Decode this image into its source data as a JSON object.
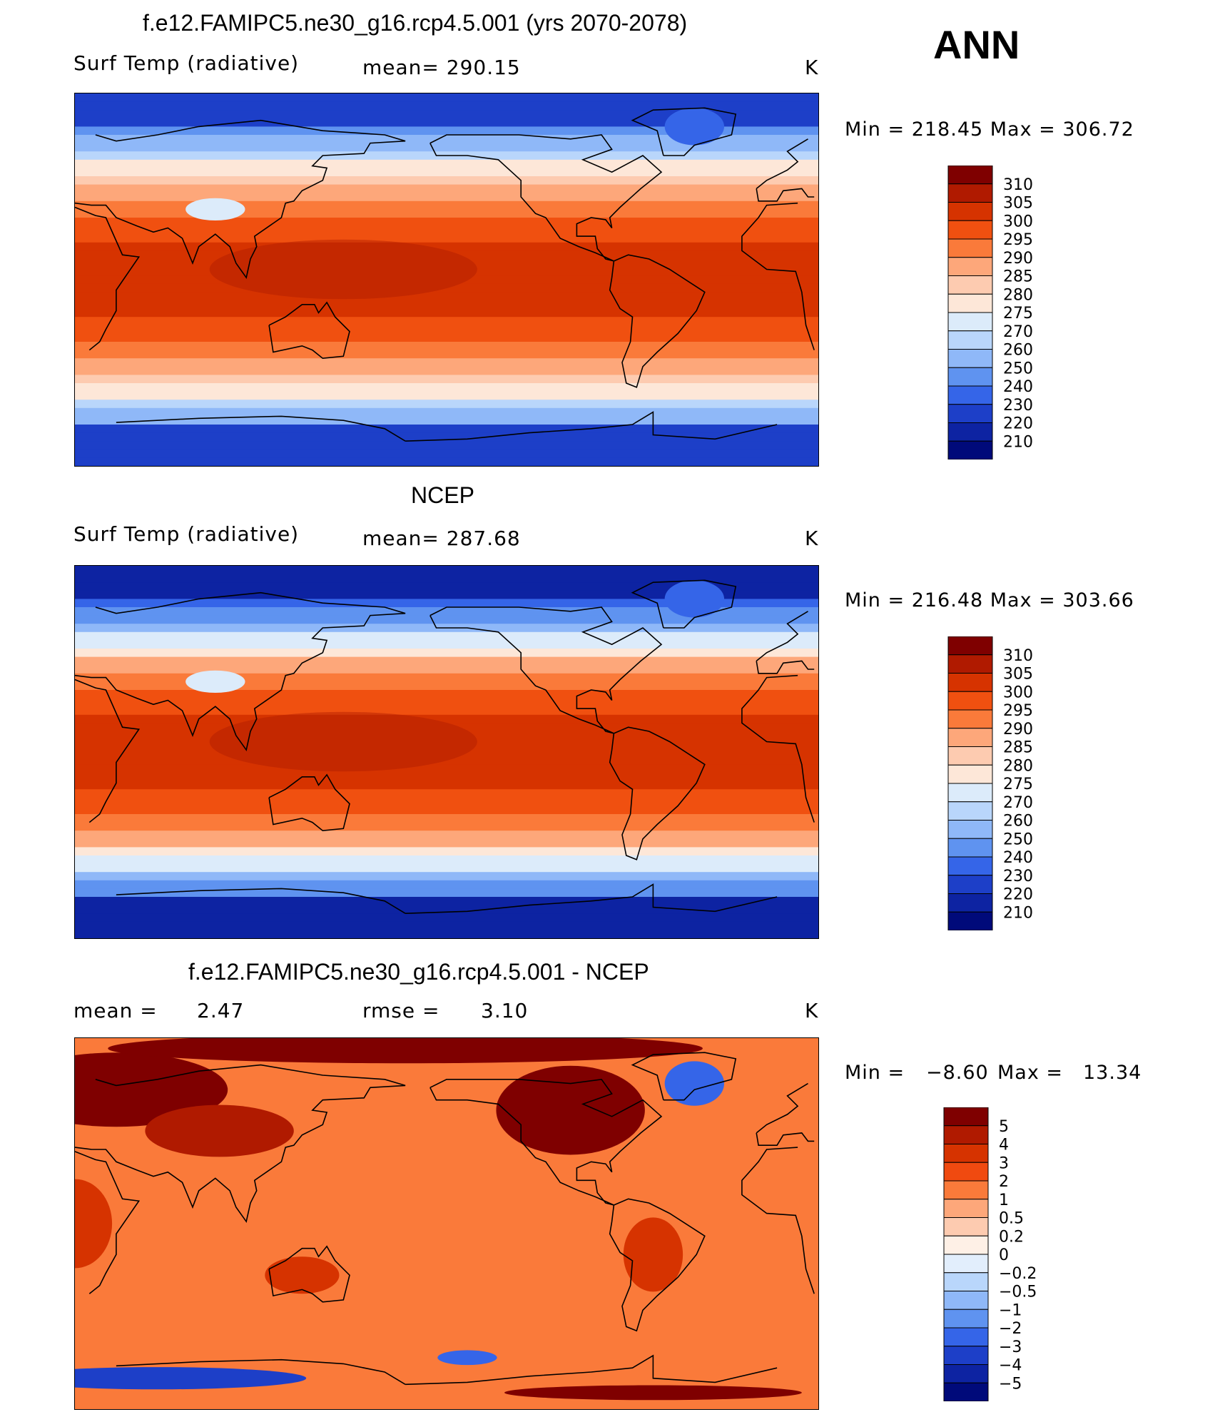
{
  "season": "ANN",
  "panels": [
    {
      "title": "f.e12.FAMIPC5.ne30_g16.rcp4.5.001 (yrs 2070-2078)",
      "left_label": "Surf Temp (radiative)",
      "center_label": "mean= 290.15",
      "units": "K",
      "min_max": "Min = 218.45 Max = 306.72"
    },
    {
      "title": "NCEP",
      "left_label": "Surf Temp (radiative)",
      "center_label": "mean= 287.68",
      "units": "K",
      "min_max": "Min = 216.48 Max = 303.66"
    },
    {
      "title": "f.e12.FAMIPC5.ne30_g16.rcp4.5.001 - NCEP",
      "left_label": "mean =",
      "left_value": "2.47",
      "center_label": "rmse =",
      "center_value": "3.10",
      "units": "K",
      "min_max_label": "Min =",
      "min_value": "−8.60",
      "max_label": "Max =",
      "max_value": "13.34"
    }
  ],
  "chart_data": [
    {
      "type": "heatmap",
      "variable": "Surf Temp (radiative)",
      "mean": 290.15,
      "min": 218.45,
      "max": 306.72,
      "colorbar_levels": [
        "310",
        "305",
        "300",
        "295",
        "290",
        "285",
        "280",
        "275",
        "270",
        "260",
        "250",
        "240",
        "230",
        "220",
        "210"
      ]
    },
    {
      "type": "heatmap",
      "variable": "Surf Temp (radiative)",
      "mean": 287.68,
      "min": 216.48,
      "max": 303.66,
      "colorbar_levels": [
        "310",
        "305",
        "300",
        "295",
        "290",
        "285",
        "280",
        "275",
        "270",
        "260",
        "250",
        "240",
        "230",
        "220",
        "210"
      ]
    },
    {
      "type": "heatmap",
      "mean": 2.47,
      "rmse": 3.1,
      "min": -8.6,
      "max": 13.34,
      "colorbar_levels": [
        "5",
        "4",
        "3",
        "2",
        "1",
        "0.5",
        "0.2",
        "0",
        "−0.2",
        "−0.5",
        "−1",
        "−2",
        "−3",
        "−4",
        "−5"
      ]
    }
  ],
  "colors": {
    "temp_scale": [
      "#7f0000",
      "#b01a00",
      "#d63300",
      "#f05010",
      "#fa7a3a",
      "#fda77a",
      "#fdcbb0",
      "#fde7d8",
      "#dcebfa",
      "#b9d6fb",
      "#8fb8f8",
      "#5f93f0",
      "#3565e8",
      "#1d3fc8",
      "#0d23a2",
      "#000a7a"
    ],
    "diff_scale": [
      "#7f0000",
      "#b01a00",
      "#d63300",
      "#f04a10",
      "#fa7a3a",
      "#fda77a",
      "#fdcbb0",
      "#fef0e6",
      "#e2eefc",
      "#b9d6fb",
      "#8fb8f8",
      "#5f93f0",
      "#3565e8",
      "#1d3fc8",
      "#0d23a2",
      "#000a7a"
    ]
  }
}
